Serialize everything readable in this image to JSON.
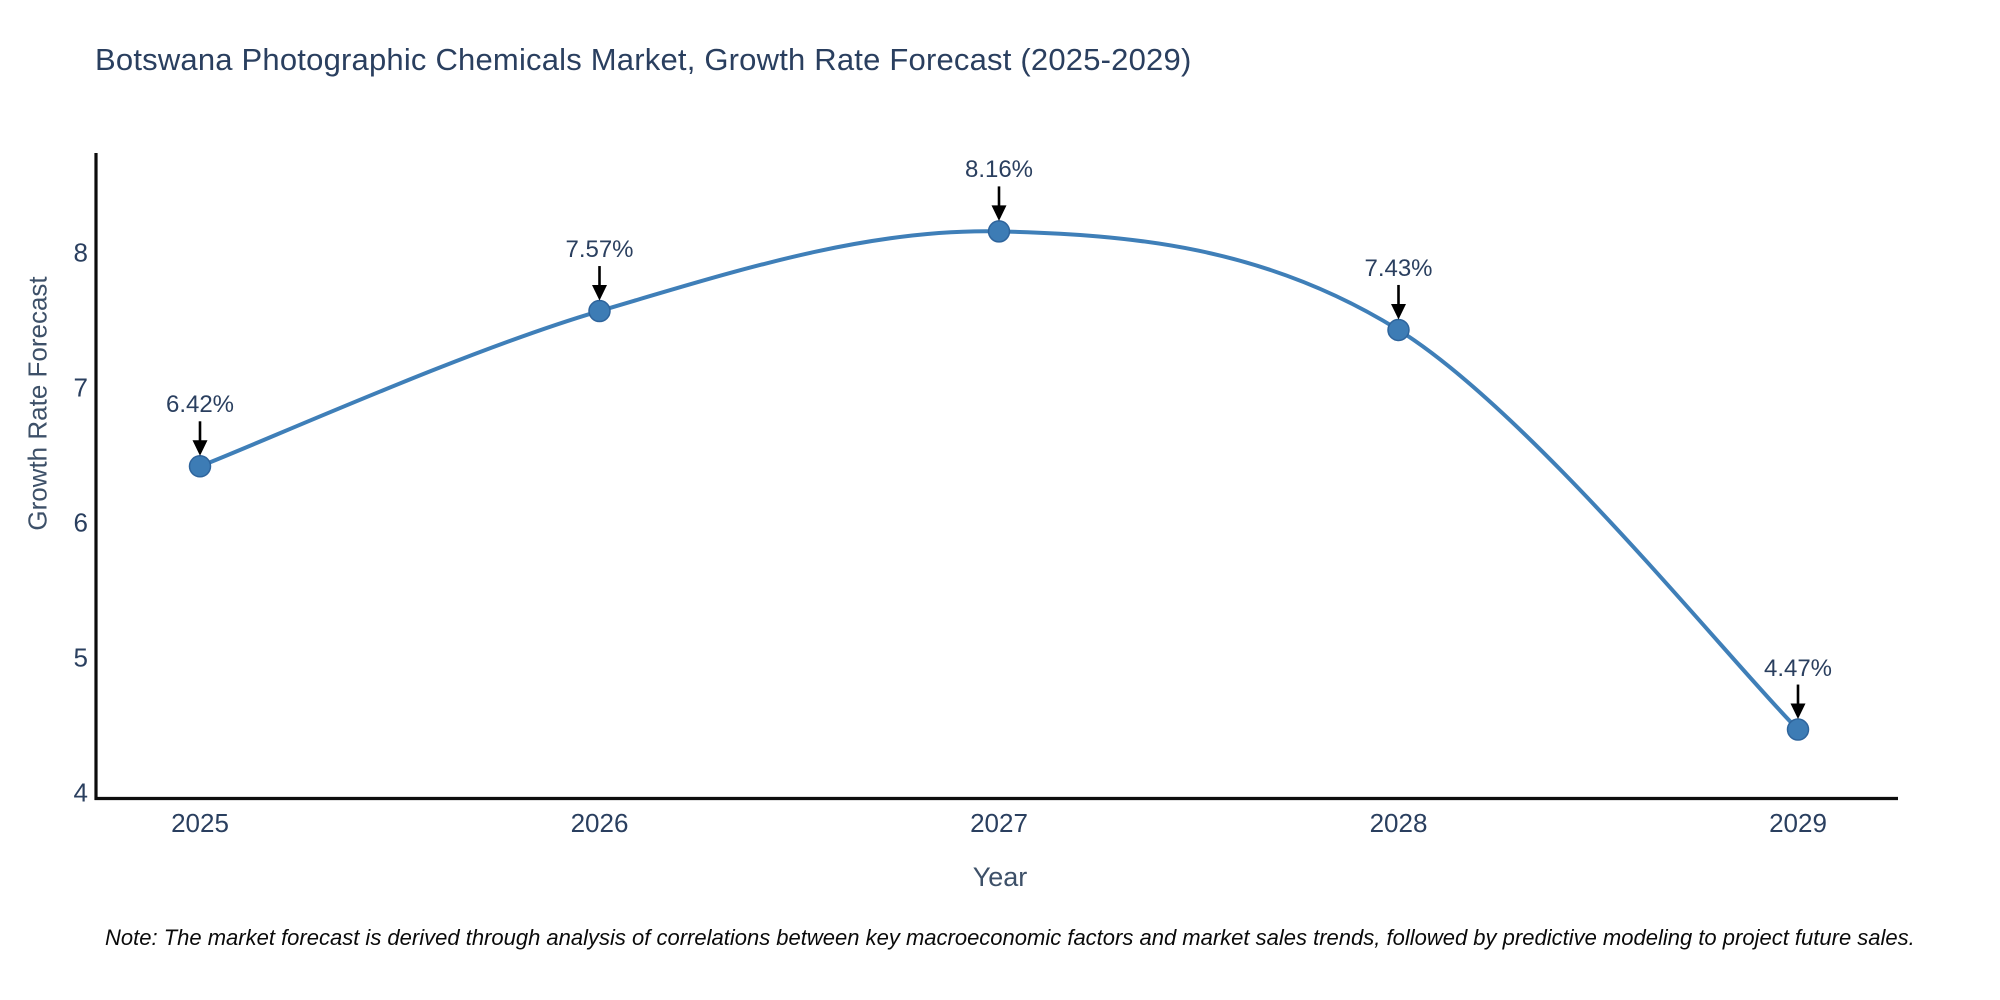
{
  "chart": {
    "title": "Botswana Photographic Chemicals Market, Growth Rate Forecast (2025-2029)",
    "xlabel": "Year",
    "ylabel": "Growth Rate Forecast",
    "note": "Note: The market forecast is derived through analysis of correlations between key macroeconomic factors and market sales trends, followed by predictive modeling to project future sales."
  },
  "chart_data": {
    "type": "line",
    "title": "Botswana Photographic Chemicals Market, Growth Rate Forecast (2025-2029)",
    "xlabel": "Year",
    "ylabel": "Growth Rate Forecast",
    "x": [
      2025,
      2026,
      2027,
      2028,
      2029
    ],
    "series": [
      {
        "name": "Growth Rate Forecast",
        "values": [
          6.42,
          7.57,
          8.16,
          7.43,
          4.47
        ]
      }
    ],
    "point_labels": [
      "6.42%",
      "7.57%",
      "8.16%",
      "7.43%",
      "4.47%"
    ],
    "xticks": [
      "2025",
      "2026",
      "2027",
      "2028",
      "2029"
    ],
    "yticks": [
      4,
      5,
      6,
      7,
      8
    ],
    "ylim": [
      4,
      8.73
    ],
    "line_shape": "spline",
    "grid": false,
    "legend": false,
    "colors": {
      "line": "#3f7fb8",
      "marker": "#3d7cb5",
      "marker_edge": "#2e649c",
      "arrow": "#000000",
      "axis": "#0d0d0d",
      "tick_text": "#2a3f5f",
      "annotation_text": "#2a3f5f"
    }
  }
}
